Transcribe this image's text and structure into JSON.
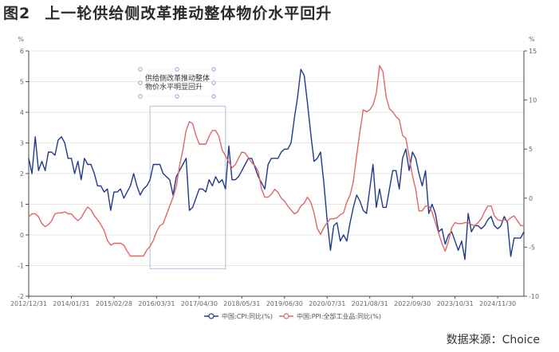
{
  "header": {
    "figure_number": "图2",
    "title": "上一轮供给侧改革推动整体物价水平回升"
  },
  "footer": {
    "source": "数据来源：Choice"
  },
  "colors": {
    "cpi": "#1f3a8a",
    "ppi": "#e06666",
    "annotation_box": "#aac4dc"
  },
  "chart_data": {
    "type": "line",
    "x_tick_labels": [
      "2012/12/31",
      "2014/01/31",
      "2015/02/28",
      "2016/03/31",
      "2017/04/30",
      "2018/05/31",
      "2019/06/30",
      "2020/07/31",
      "2021/08/31",
      "2022/09/30",
      "2023/10/31",
      "2024/11/30"
    ],
    "left_axis": {
      "unit": "%",
      "ylim": [
        -2,
        6
      ],
      "ticks": [
        "-2",
        "-1",
        "0",
        "1",
        "2",
        "3",
        "4",
        "5",
        "6"
      ]
    },
    "right_axis": {
      "unit": "%",
      "ylim": [
        -10,
        15
      ],
      "ticks": [
        "-10",
        "-5",
        "0",
        "5",
        "10",
        "15"
      ]
    },
    "annotation": {
      "lines": [
        "供给侧改革推动整体",
        "物价水平明显回升"
      ],
      "x_range": [
        "2016/01",
        "2017/12"
      ],
      "y_range_left": [
        -1.1,
        4.2
      ]
    },
    "series": [
      {
        "name": "中国:CPI:同比(%)",
        "axis": "left",
        "start": "2012/12",
        "values": [
          2.5,
          2.0,
          3.2,
          2.1,
          2.4,
          2.1,
          2.7,
          2.7,
          2.6,
          3.1,
          3.2,
          3.0,
          2.5,
          2.5,
          2.0,
          2.4,
          1.8,
          2.5,
          2.3,
          2.3,
          2.0,
          1.6,
          1.6,
          1.4,
          1.5,
          0.8,
          1.4,
          1.4,
          1.5,
          1.2,
          1.4,
          1.6,
          2.0,
          1.6,
          1.3,
          1.5,
          1.6,
          1.8,
          2.3,
          2.3,
          2.3,
          2.0,
          1.9,
          1.8,
          1.3,
          1.9,
          2.1,
          2.3,
          2.5,
          0.8,
          0.9,
          1.2,
          1.5,
          1.5,
          1.4,
          1.8,
          1.6,
          1.9,
          1.7,
          1.8,
          1.5,
          2.9,
          1.8,
          1.8,
          1.9,
          2.1,
          2.3,
          2.5,
          2.5,
          2.2,
          1.9,
          1.7,
          1.5,
          2.3,
          2.5,
          2.5,
          2.5,
          2.7,
          2.8,
          2.8,
          3.0,
          3.8,
          4.5,
          5.4,
          5.2,
          4.3,
          3.3,
          2.4,
          2.5,
          2.7,
          1.7,
          0.5,
          -0.5,
          0.3,
          0.4,
          -0.2,
          0.0,
          -0.2,
          0.4,
          0.9,
          1.3,
          1.1,
          0.8,
          0.7,
          1.5,
          2.3,
          0.9,
          1.5,
          0.9,
          0.9,
          1.5,
          2.1,
          2.1,
          1.5,
          2.5,
          2.8,
          2.1,
          2.7,
          2.5,
          2.0,
          1.6,
          2.1,
          0.7,
          1.0,
          0.7,
          0.1,
          0.2,
          -0.3,
          0.0,
          0.1,
          -0.2,
          -0.5,
          -0.2,
          -0.8,
          0.7,
          0.1,
          0.3,
          0.3,
          0.2,
          0.3,
          0.5,
          0.6,
          0.3,
          0.2,
          0.3,
          0.6,
          0.4,
          -0.7,
          -0.1,
          -0.1,
          -0.1,
          0.1
        ]
      },
      {
        "name": "中国:PPI:全部工业品:同比(%)",
        "axis": "right",
        "start": "2012/12",
        "values": [
          -1.9,
          -1.6,
          -1.6,
          -1.9,
          -2.6,
          -2.9,
          -2.7,
          -2.3,
          -1.6,
          -1.5,
          -1.5,
          -1.4,
          -1.6,
          -1.6,
          -2.0,
          -2.3,
          -2.0,
          -1.4,
          -0.9,
          -1.2,
          -1.8,
          -2.2,
          -2.7,
          -3.3,
          -4.3,
          -4.8,
          -4.6,
          -4.6,
          -4.6,
          -4.8,
          -5.4,
          -5.9,
          -5.9,
          -5.9,
          -5.9,
          -5.9,
          -5.3,
          -4.9,
          -4.3,
          -3.4,
          -2.8,
          -2.6,
          -1.7,
          -0.8,
          0.1,
          1.2,
          3.3,
          4.9,
          6.9,
          7.8,
          7.6,
          6.4,
          5.5,
          5.5,
          5.5,
          6.3,
          6.9,
          6.9,
          6.3,
          4.9,
          4.3,
          3.7,
          3.1,
          3.4,
          4.1,
          4.7,
          4.6,
          4.1,
          3.6,
          3.3,
          2.7,
          0.9,
          0.1,
          0.1,
          0.4,
          0.9,
          0.6,
          0.0,
          -0.3,
          -0.8,
          -1.2,
          -1.6,
          -1.4,
          -0.8,
          -0.5,
          0.1,
          -0.4,
          -1.5,
          -3.1,
          -3.7,
          -3.0,
          -2.5,
          -2.1,
          -2.1,
          -2.0,
          -1.7,
          -1.5,
          -0.4,
          0.3,
          1.7,
          4.4,
          6.8,
          9.0,
          8.8,
          9.0,
          9.5,
          10.7,
          13.5,
          12.9,
          10.3,
          9.1,
          8.8,
          8.3,
          8.0,
          6.4,
          6.1,
          4.2,
          2.3,
          0.9,
          -1.3,
          -1.3,
          -0.8,
          -0.8,
          -1.4,
          -2.5,
          -3.6,
          -4.6,
          -5.4,
          -4.4,
          -3.0,
          -2.5,
          -2.6,
          -2.6,
          -2.5,
          -2.5,
          -2.7,
          -2.8,
          -2.5,
          -2.1,
          -1.4,
          -0.8,
          -0.8,
          -1.8,
          -2.2,
          -2.3,
          -2.2,
          -2.3,
          -2.0,
          -1.8,
          -2.3,
          -2.8,
          -2.8
        ]
      }
    ]
  }
}
